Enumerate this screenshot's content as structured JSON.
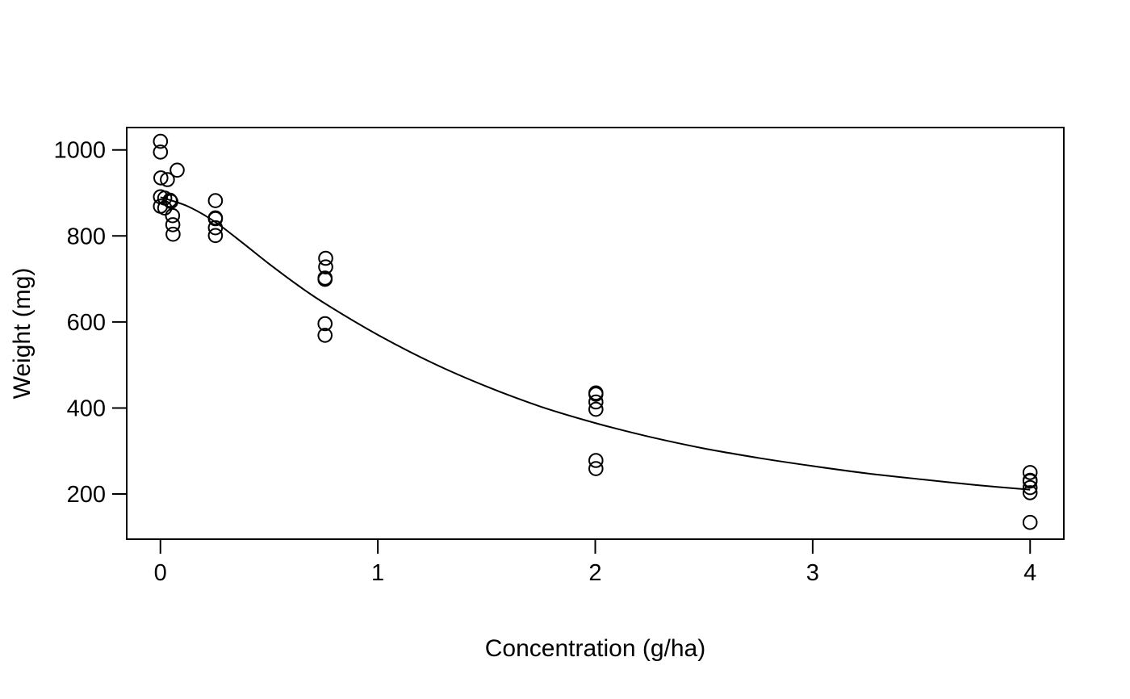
{
  "figure": {
    "background": "#ffffff",
    "stroke_color": "#000000"
  },
  "chart_data": {
    "type": "scatter",
    "title": "",
    "xlabel": "Concentration (g/ha)",
    "ylabel": "Weight (mg)",
    "xlim": [
      -0.155,
      4.155
    ],
    "ylim": [
      95,
      1052
    ],
    "x_ticks": [
      0,
      1,
      2,
      3,
      4
    ],
    "y_ticks": [
      200,
      400,
      600,
      800,
      1000
    ],
    "grid": false,
    "legend": null,
    "marker": {
      "shape": "open-circle",
      "radius": 8.3,
      "stroke_width": 2,
      "color": "#000000"
    },
    "points": [
      [
        0.0,
        1020
      ],
      [
        0.0,
        995
      ],
      [
        0.077,
        953
      ],
      [
        0.002,
        935
      ],
      [
        0.032,
        931
      ],
      [
        0.0,
        891
      ],
      [
        0.02,
        888
      ],
      [
        0.044,
        883
      ],
      [
        0.048,
        880
      ],
      [
        0.0,
        869
      ],
      [
        0.02,
        865
      ],
      [
        0.056,
        847
      ],
      [
        0.057,
        826
      ],
      [
        0.058,
        804
      ],
      [
        0.253,
        882
      ],
      [
        0.253,
        842
      ],
      [
        0.253,
        840
      ],
      [
        0.253,
        819
      ],
      [
        0.253,
        801
      ],
      [
        0.76,
        748
      ],
      [
        0.76,
        728
      ],
      [
        0.757,
        702
      ],
      [
        0.757,
        699
      ],
      [
        0.757,
        596
      ],
      [
        0.757,
        569
      ],
      [
        2.003,
        435
      ],
      [
        2.003,
        432
      ],
      [
        2.003,
        414
      ],
      [
        2.003,
        397
      ],
      [
        2.003,
        278
      ],
      [
        2.003,
        259
      ],
      [
        4.0,
        250
      ],
      [
        4.0,
        232
      ],
      [
        4.0,
        230
      ],
      [
        4.0,
        215
      ],
      [
        4.0,
        203
      ],
      [
        4.0,
        134
      ]
    ],
    "fit_curve": {
      "label": "fitted dose-response curve",
      "color": "#000000",
      "stroke_width": 2,
      "waypoints": [
        [
          0.0,
          890
        ],
        [
          0.125,
          869
        ],
        [
          0.25,
          833
        ],
        [
          0.375,
          785
        ],
        [
          0.5,
          735
        ],
        [
          0.625,
          688
        ],
        [
          0.75,
          645
        ],
        [
          1.0,
          570
        ],
        [
          1.25,
          505
        ],
        [
          1.5,
          450
        ],
        [
          1.75,
          403
        ],
        [
          2.0,
          365
        ],
        [
          2.25,
          333
        ],
        [
          2.5,
          306
        ],
        [
          2.75,
          284
        ],
        [
          3.0,
          265
        ],
        [
          3.25,
          248
        ],
        [
          3.5,
          234
        ],
        [
          3.75,
          221
        ],
        [
          4.0,
          210
        ]
      ]
    }
  }
}
